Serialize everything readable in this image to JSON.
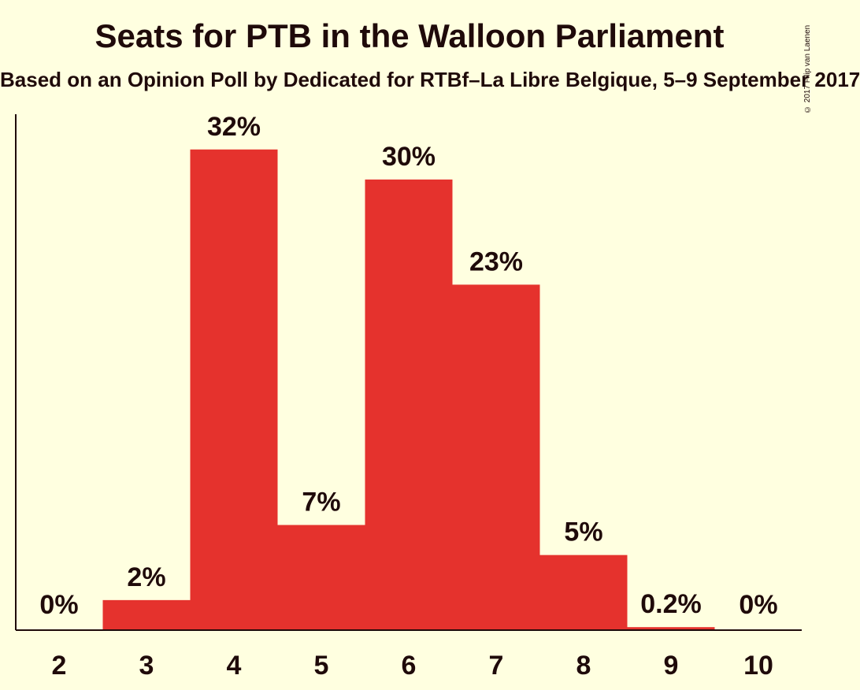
{
  "title": "Seats for PTB in the Walloon Parliament",
  "subtitle": "Based on an Opinion Poll by Dedicated for RTBf–La Libre Belgique, 5–9 September 2017",
  "copyright": "© 2017 Filip van Laenen",
  "colors": {
    "background": "#ffffe0",
    "bar": "#e5322d",
    "text": "#1f0a0a"
  },
  "chart_data": {
    "type": "bar",
    "title": "Seats for PTB in the Walloon Parliament",
    "subtitle": "Based on an Opinion Poll by Dedicated for RTBf–La Libre Belgique, 5–9 September 2017",
    "xlabel": "",
    "ylabel": "",
    "categories": [
      "2",
      "3",
      "4",
      "5",
      "6",
      "7",
      "8",
      "9",
      "10"
    ],
    "values": [
      0,
      2,
      32,
      7,
      30,
      23,
      5,
      0.2,
      0
    ],
    "labels": [
      "0%",
      "2%",
      "32%",
      "7%",
      "30%",
      "23%",
      "5%",
      "0.2%",
      "0%"
    ],
    "unit": "%",
    "grid": false,
    "legend": "none"
  }
}
